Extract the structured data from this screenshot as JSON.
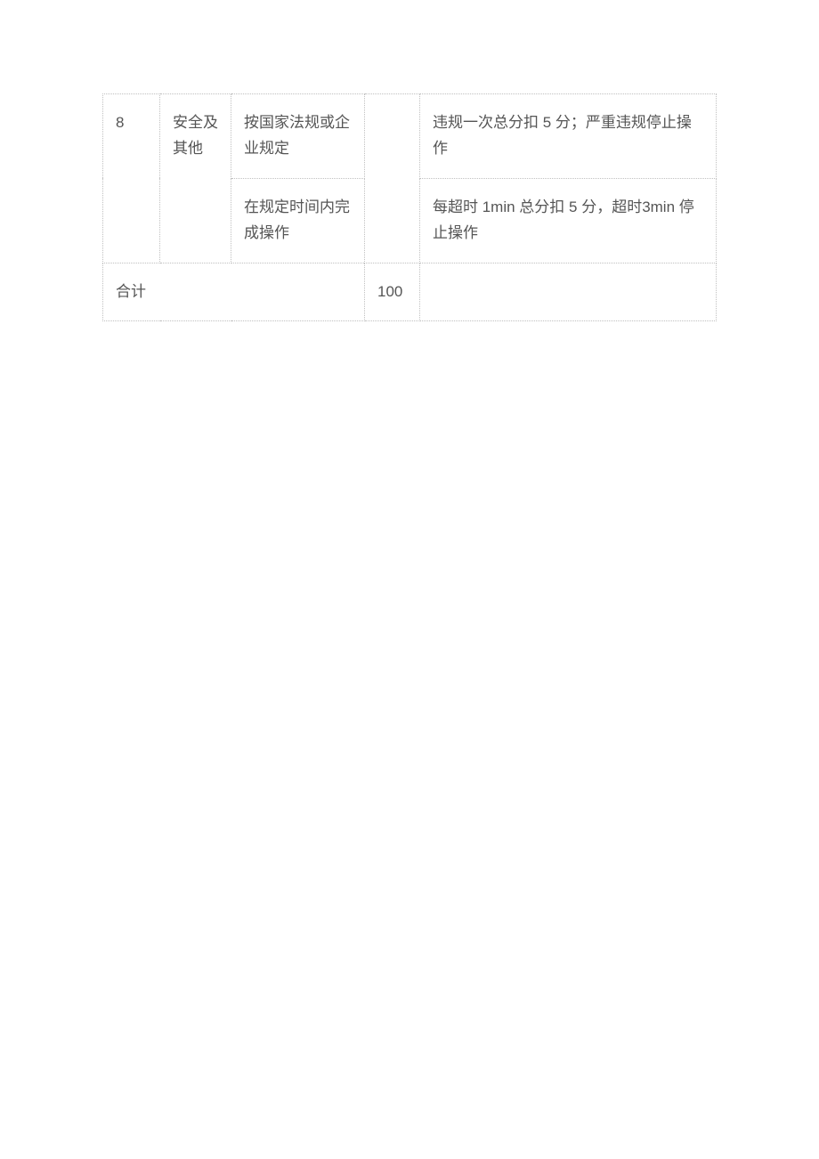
{
  "table": {
    "border_color": "#c0c0c0",
    "text_color": "#555555",
    "font_size": 17,
    "background_color": "#ffffff",
    "columns": {
      "col1_width": 64,
      "col2_width": 80,
      "col3_width": 150,
      "col4_width": 62
    },
    "rows": [
      {
        "c1": "8",
        "c2": "安全及其他",
        "c3": "按国家法规或企业规定",
        "c4": "",
        "c5": "违规一次总分扣 5 分；严重违规停止操作",
        "c1_rowspan": 2,
        "c2_rowspan": 2,
        "c4_rowspan": 2
      },
      {
        "c3": "在规定时间内完成操作",
        "c5": "每超时 1min 总分扣 5 分，超时3min 停止操作"
      },
      {
        "c1": "合计",
        "c1_colspan": 3,
        "c4": "100",
        "c5": ""
      }
    ]
  }
}
